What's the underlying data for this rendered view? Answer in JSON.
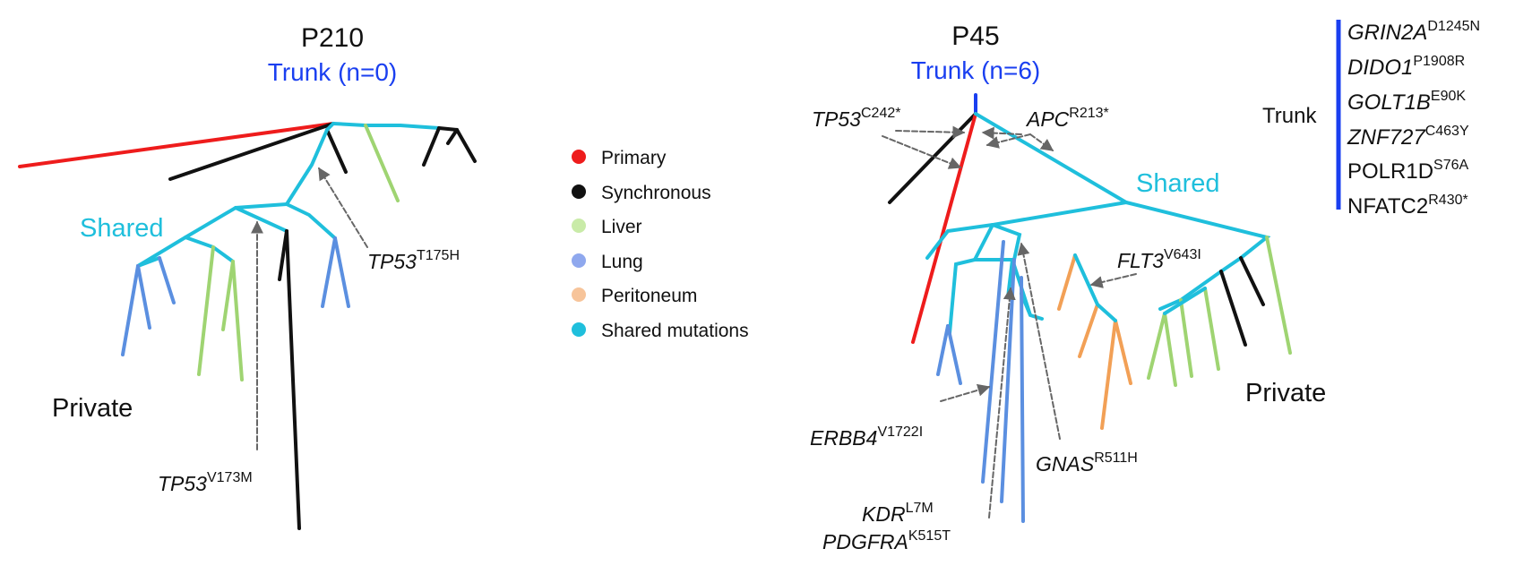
{
  "colors": {
    "primary": "#ee1c1c",
    "synchronous": "#111111",
    "liver": "#9fd472",
    "lung": "#5b8fe0",
    "peritoneum": "#f2a056",
    "shared": "#1fbfdc",
    "trunk_blue": "#1a3ff0",
    "arrow": "#666666"
  },
  "left_tree": {
    "patient": "P210",
    "trunk_label": "Trunk (n=0)",
    "shared_label": "Shared",
    "private_label": "Private",
    "mutations": [
      {
        "gene": "TP53",
        "variant": "T175H"
      },
      {
        "gene": "TP53",
        "variant": "V173M"
      }
    ]
  },
  "right_tree": {
    "patient": "P45",
    "trunk_label": "Trunk (n=6)",
    "shared_label": "Shared",
    "private_label": "Private",
    "mutations": [
      {
        "gene": "TP53",
        "variant": "C242*"
      },
      {
        "gene": "APC",
        "variant": "R213*"
      },
      {
        "gene": "FLT3",
        "variant": "V643I"
      },
      {
        "gene": "ERBB4",
        "variant": "V1722I"
      },
      {
        "gene": "GNAS",
        "variant": "R511H"
      },
      {
        "gene": "KDR",
        "variant": "L7M"
      },
      {
        "gene": "PDGFRA",
        "variant": "K515T"
      }
    ]
  },
  "legend": [
    {
      "label": "Primary",
      "color": "#ee1c1c"
    },
    {
      "label": "Synchronous",
      "color": "#111111"
    },
    {
      "label": "Liver",
      "color": "#c9eba8"
    },
    {
      "label": "Lung",
      "color": "#8fa8ee"
    },
    {
      "label": "Peritoneum",
      "color": "#f7c49a"
    },
    {
      "label": "Shared mutations",
      "color": "#1fbfdc"
    }
  ],
  "trunk_panel": {
    "label": "Trunk",
    "genes": [
      {
        "gene": "GRIN2A",
        "variant": "D1245N",
        "italic": true
      },
      {
        "gene": "DIDO1",
        "variant": "P1908R",
        "italic": true
      },
      {
        "gene": "GOLT1B",
        "variant": "E90K",
        "italic": true
      },
      {
        "gene": "ZNF727",
        "variant": "C463Y",
        "italic": true
      },
      {
        "gene": "POLR1D",
        "variant": "S76A",
        "italic": false
      },
      {
        "gene": "NFATC2",
        "variant": "R430*",
        "italic": false
      }
    ]
  }
}
